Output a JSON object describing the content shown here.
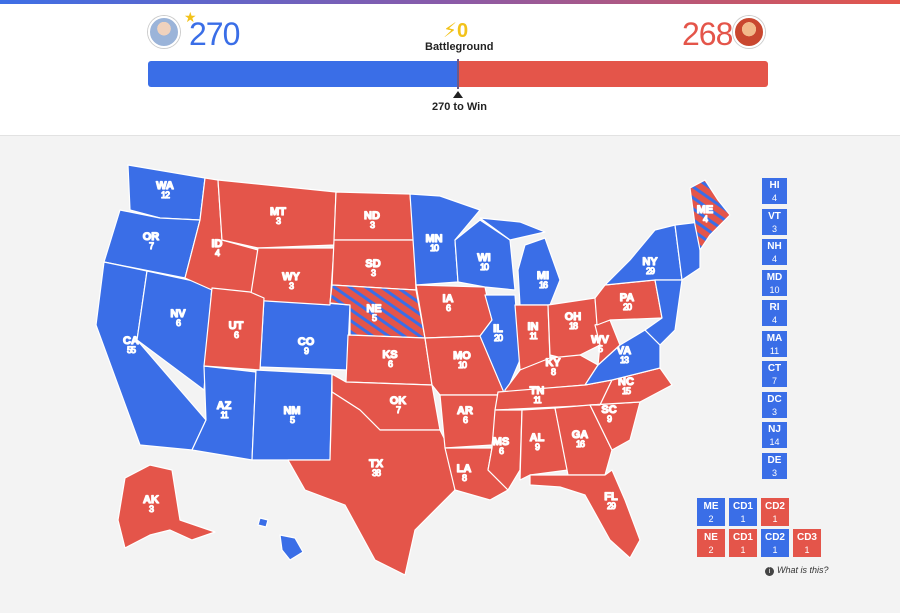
{
  "header": {
    "dem_ev": "270",
    "rep_ev": "268",
    "battleground_count": "⚡0",
    "battleground_label": "Battleground",
    "to_win_label": "270 to Win"
  },
  "colors": {
    "dem": "#3a6ee7",
    "rep": "#e4554a",
    "battleground": "#f2c21a"
  },
  "states": [
    {
      "ab": "WA",
      "ev": "12"
    },
    {
      "ab": "OR",
      "ev": "7"
    },
    {
      "ab": "CA",
      "ev": "55"
    },
    {
      "ab": "NV",
      "ev": "6"
    },
    {
      "ab": "ID",
      "ev": "4"
    },
    {
      "ab": "MT",
      "ev": "3"
    },
    {
      "ab": "WY",
      "ev": "3"
    },
    {
      "ab": "UT",
      "ev": "6"
    },
    {
      "ab": "AZ",
      "ev": "11"
    },
    {
      "ab": "CO",
      "ev": "9"
    },
    {
      "ab": "NM",
      "ev": "5"
    },
    {
      "ab": "ND",
      "ev": "3"
    },
    {
      "ab": "SD",
      "ev": "3"
    },
    {
      "ab": "NE",
      "ev": "5"
    },
    {
      "ab": "KS",
      "ev": "6"
    },
    {
      "ab": "OK",
      "ev": "7"
    },
    {
      "ab": "TX",
      "ev": "38"
    },
    {
      "ab": "MN",
      "ev": "10"
    },
    {
      "ab": "IA",
      "ev": "6"
    },
    {
      "ab": "MO",
      "ev": "10"
    },
    {
      "ab": "AR",
      "ev": "6"
    },
    {
      "ab": "LA",
      "ev": "8"
    },
    {
      "ab": "WI",
      "ev": "10"
    },
    {
      "ab": "IL",
      "ev": "20"
    },
    {
      "ab": "MI",
      "ev": "16"
    },
    {
      "ab": "IN",
      "ev": "11"
    },
    {
      "ab": "OH",
      "ev": "18"
    },
    {
      "ab": "KY",
      "ev": "8"
    },
    {
      "ab": "TN",
      "ev": "11"
    },
    {
      "ab": "MS",
      "ev": "6"
    },
    {
      "ab": "AL",
      "ev": "9"
    },
    {
      "ab": "GA",
      "ev": "16"
    },
    {
      "ab": "FL",
      "ev": "29"
    },
    {
      "ab": "SC",
      "ev": "9"
    },
    {
      "ab": "NC",
      "ev": "15"
    },
    {
      "ab": "VA",
      "ev": "13"
    },
    {
      "ab": "WV",
      "ev": "5"
    },
    {
      "ab": "PA",
      "ev": "20"
    },
    {
      "ab": "NY",
      "ev": "29"
    },
    {
      "ab": "ME",
      "ev": "4"
    },
    {
      "ab": "AK",
      "ev": "3"
    }
  ],
  "small_states": [
    {
      "ab": "HI",
      "ev": "4"
    },
    {
      "ab": "VT",
      "ev": "3"
    },
    {
      "ab": "NH",
      "ev": "4"
    },
    {
      "ab": "MD",
      "ev": "10"
    },
    {
      "ab": "RI",
      "ev": "4"
    },
    {
      "ab": "MA",
      "ev": "11"
    },
    {
      "ab": "CT",
      "ev": "7"
    },
    {
      "ab": "DC",
      "ev": "3"
    },
    {
      "ab": "NJ",
      "ev": "14"
    },
    {
      "ab": "DE",
      "ev": "3"
    }
  ],
  "districts": [
    {
      "label": "ME",
      "ev": "2"
    },
    {
      "label": "CD1",
      "ev": "1"
    },
    {
      "label": "CD2",
      "ev": "1"
    },
    {
      "label": "NE",
      "ev": "2"
    },
    {
      "label": "CD1",
      "ev": "1"
    },
    {
      "label": "CD2",
      "ev": "1"
    },
    {
      "label": "CD3",
      "ev": "1"
    }
  ],
  "what_is_this": "What is this?"
}
